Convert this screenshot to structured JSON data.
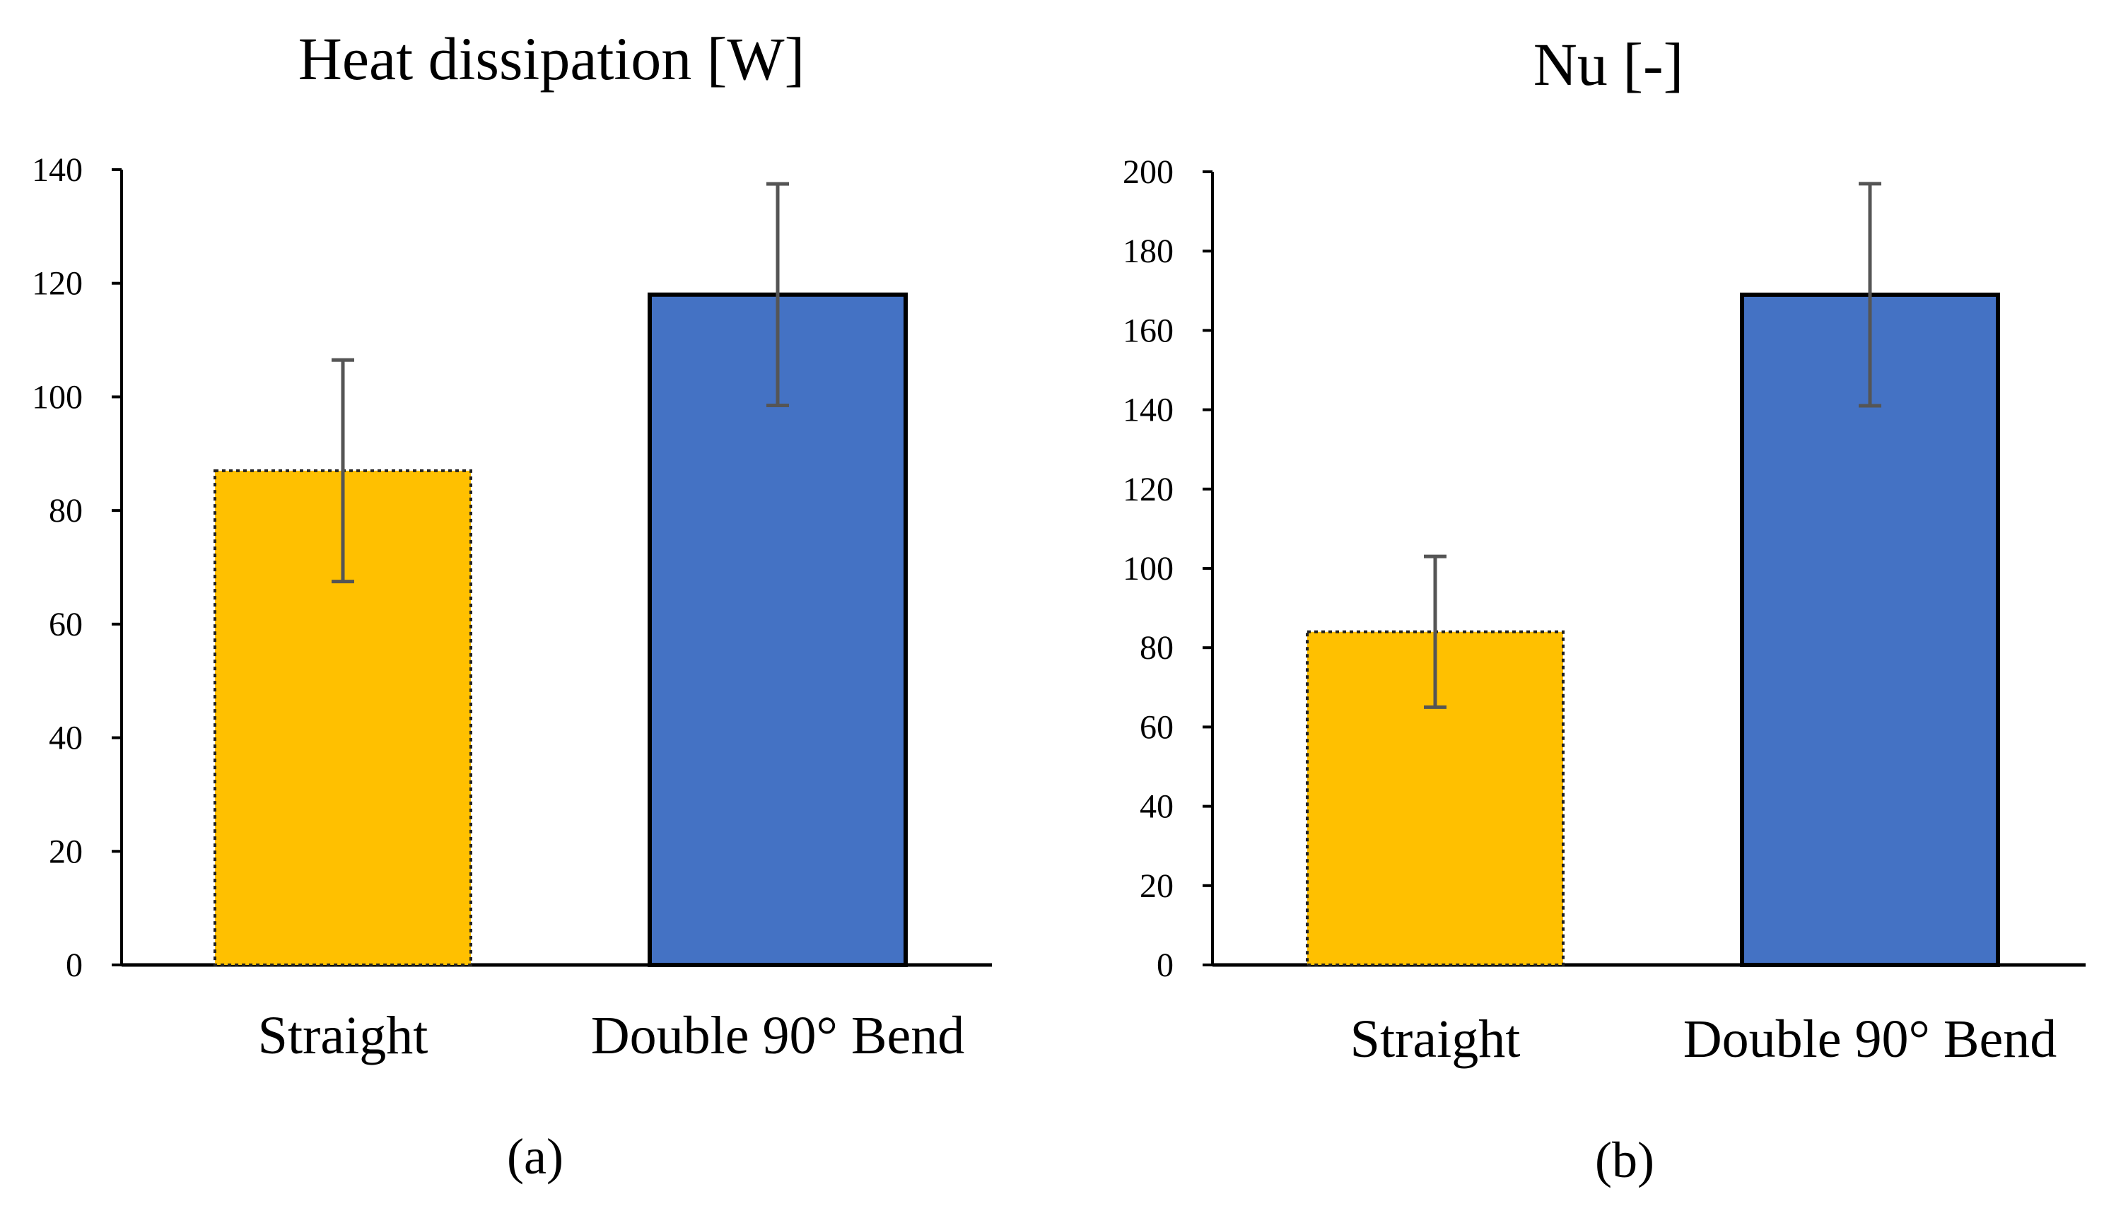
{
  "chart_data": [
    {
      "type": "bar",
      "title": "Heat dissipation  [W]",
      "panel_label": "(a)",
      "categories": [
        "Straight",
        "Double 90° Bend"
      ],
      "values": [
        87,
        118
      ],
      "errors": [
        19.5,
        19.5
      ],
      "colors": [
        "#FFC000",
        "#4472C4"
      ],
      "bar_styles": [
        "dotted",
        "solid"
      ],
      "ylim": [
        0,
        140
      ],
      "yticks": [
        "0",
        "20",
        "40",
        "60",
        "80",
        "100",
        "120",
        "140"
      ],
      "grid": false
    },
    {
      "type": "bar",
      "title": "Nu [-]",
      "panel_label": "(b)",
      "categories": [
        "Straight",
        "Double 90° Bend"
      ],
      "values": [
        84,
        169
      ],
      "errors": [
        19,
        28
      ],
      "colors": [
        "#FFC000",
        "#4472C4"
      ],
      "bar_styles": [
        "dotted",
        "solid"
      ],
      "ylim": [
        0,
        200
      ],
      "yticks": [
        "0",
        "20",
        "40",
        "60",
        "80",
        "100",
        "120",
        "140",
        "160",
        "180",
        "200"
      ],
      "grid": false
    }
  ]
}
